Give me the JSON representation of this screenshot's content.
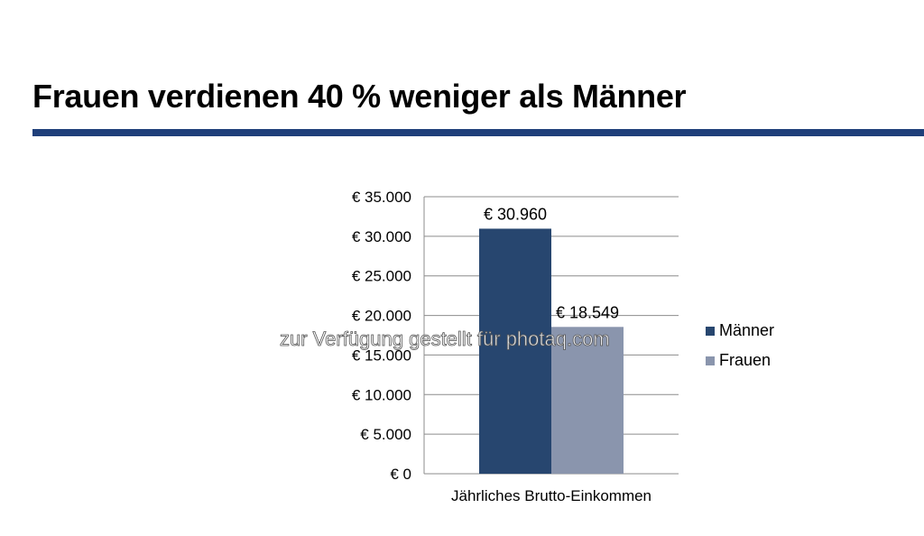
{
  "page": {
    "title": "Frauen verdienen 40 % weniger als Männer",
    "watermark": "zur Verfügung gestellt für photaq.com"
  },
  "colors": {
    "title_rule": "#1f3f7a",
    "maenner": "#27466f",
    "frauen": "#8a95ad",
    "grid": "#8c8c8c"
  },
  "chart_data": {
    "type": "bar",
    "categories": [
      "Jährliches Brutto-Einkommen"
    ],
    "series": [
      {
        "name": "Männer",
        "values": [
          30960
        ],
        "label": "€ 30.960",
        "color": "#27466f"
      },
      {
        "name": "Frauen",
        "values": [
          18549
        ],
        "label": "€ 18.549",
        "color": "#8a95ad"
      }
    ],
    "ylim": [
      0,
      35000
    ],
    "yticks": [
      {
        "value": 0,
        "label": "€ 0"
      },
      {
        "value": 5000,
        "label": "€ 5.000"
      },
      {
        "value": 10000,
        "label": "€ 10.000"
      },
      {
        "value": 15000,
        "label": "€ 15.000"
      },
      {
        "value": 20000,
        "label": "€ 20.000"
      },
      {
        "value": 25000,
        "label": "€ 25.000"
      },
      {
        "value": 30000,
        "label": "€ 30.000"
      },
      {
        "value": 35000,
        "label": "€ 35.000"
      }
    ],
    "grid": true,
    "legend_position": "right"
  }
}
